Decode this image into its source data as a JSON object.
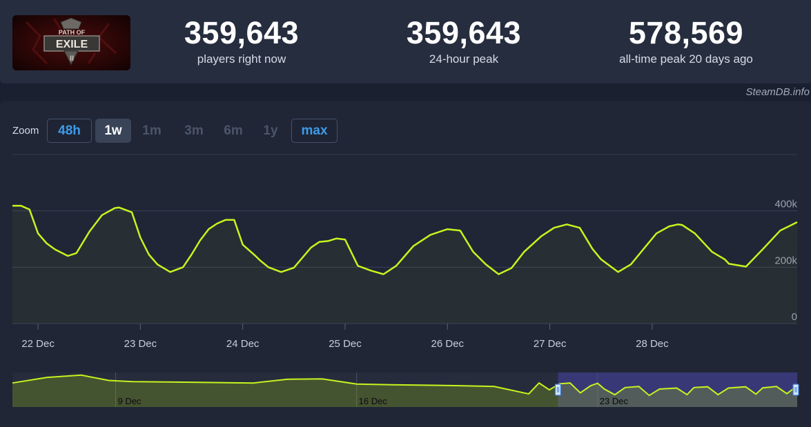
{
  "stats": [
    {
      "value": "359,643",
      "label": "players right now"
    },
    {
      "value": "359,643",
      "label": "24-hour peak"
    },
    {
      "value": "578,569",
      "label": "all-time peak 20 days ago"
    }
  ],
  "logo": {
    "line1": "PATH OF",
    "line2": "EXILE",
    "line3": "II"
  },
  "credit": "SteamDB.info",
  "zoom": {
    "label": "Zoom",
    "buttons": [
      {
        "label": "48h",
        "state": "outlined"
      },
      {
        "label": "1w",
        "state": "active"
      },
      {
        "label": "1m",
        "state": "disabled"
      },
      {
        "label": "3m",
        "state": "disabled"
      },
      {
        "label": "6m",
        "state": "disabled"
      },
      {
        "label": "1y",
        "state": "disabled"
      },
      {
        "label": "max",
        "state": "outlined"
      }
    ]
  },
  "colors": {
    "line": "#c6f51e",
    "grid": "#3a4255",
    "navigator_selection": "#3f3c8c"
  },
  "chart_data": {
    "type": "line",
    "x_unit": "day",
    "x_range": [
      "21 Dec 18:00",
      "28 Dec 19:00"
    ],
    "y_ticks": [
      {
        "v": 0,
        "label": "0"
      },
      {
        "v": 200000,
        "label": "200k"
      },
      {
        "v": 400000,
        "label": "400k"
      }
    ],
    "ylim": [
      0,
      600000
    ],
    "x_ticks": [
      {
        "x": "22 Dec 00:00",
        "label": "22 Dec"
      },
      {
        "x": "23 Dec 00:00",
        "label": "23 Dec"
      },
      {
        "x": "24 Dec 00:00",
        "label": "24 Dec"
      },
      {
        "x": "25 Dec 00:00",
        "label": "25 Dec"
      },
      {
        "x": "26 Dec 00:00",
        "label": "26 Dec"
      },
      {
        "x": "27 Dec 00:00",
        "label": "27 Dec"
      },
      {
        "x": "28 Dec 00:00",
        "label": "28 Dec"
      }
    ],
    "x_hours": [
      -6,
      -4,
      -2,
      0,
      2,
      4,
      7,
      9,
      12,
      15,
      18,
      19,
      22,
      24,
      26,
      28,
      31,
      34,
      36,
      38,
      40,
      42,
      44,
      46,
      48,
      51,
      52,
      54,
      57,
      60,
      64,
      66,
      68,
      70,
      72,
      75,
      78,
      81,
      84,
      86,
      88,
      92,
      96,
      99,
      102,
      105,
      108,
      111,
      114,
      118,
      121,
      124,
      127,
      130,
      132,
      136,
      139,
      142,
      145,
      148,
      150,
      151,
      154,
      158,
      161,
      162,
      166,
      170,
      174,
      178
    ],
    "values": [
      418000,
      418000,
      405000,
      320000,
      285000,
      263000,
      240000,
      250000,
      325000,
      385000,
      410000,
      412000,
      395000,
      305000,
      245000,
      210000,
      183000,
      200000,
      245000,
      295000,
      335000,
      355000,
      368000,
      368000,
      280000,
      240000,
      225000,
      200000,
      183000,
      198000,
      270000,
      290000,
      293000,
      302000,
      298000,
      205000,
      188000,
      175000,
      205000,
      240000,
      275000,
      315000,
      335000,
      330000,
      255000,
      210000,
      175000,
      197000,
      255000,
      310000,
      340000,
      352000,
      340000,
      265000,
      228000,
      183000,
      210000,
      265000,
      320000,
      345000,
      352000,
      350000,
      320000,
      255000,
      228000,
      212000,
      202000,
      265000,
      330000,
      360000
    ]
  },
  "navigator": {
    "labels": [
      {
        "x": "9 Dec",
        "label": "9 Dec"
      },
      {
        "x": "16 Dec",
        "label": "16 Dec"
      },
      {
        "x": "23 Dec",
        "label": "23 Dec"
      }
    ],
    "x_days": [
      6,
      7,
      8,
      8.8,
      9.5,
      11,
      13,
      14,
      15,
      16,
      17,
      18,
      19,
      20,
      21,
      21.3,
      21.6,
      21.9,
      22.2,
      22.5,
      22.8,
      23,
      23.2,
      23.5,
      23.8,
      24.2,
      24.5,
      24.8,
      25.3,
      25.6,
      25.8,
      26.2,
      26.5,
      26.8,
      27.3,
      27.6,
      27.8,
      28.2,
      28.5,
      28.8
    ],
    "values": [
      420000,
      530000,
      576000,
      470000,
      447000,
      437000,
      420000,
      495000,
      500000,
      400000,
      385000,
      376000,
      367000,
      350000,
      205000,
      420000,
      285000,
      405000,
      420000,
      225000,
      365000,
      415000,
      300000,
      188000,
      330000,
      350000,
      175000,
      300000,
      320000,
      190000,
      330000,
      345000,
      190000,
      320000,
      345000,
      200000,
      325000,
      350000,
      210000,
      360000
    ]
  }
}
